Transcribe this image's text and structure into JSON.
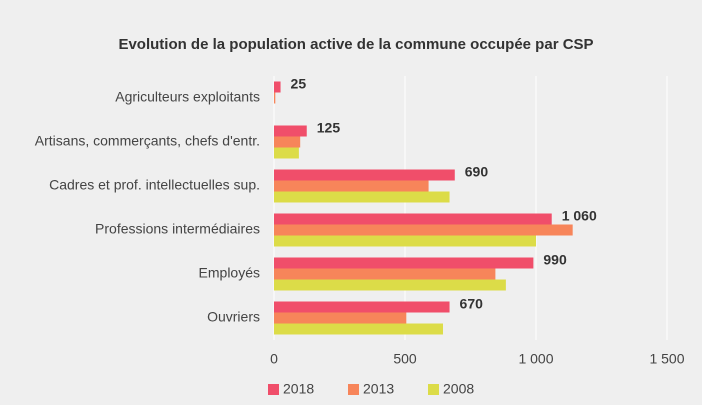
{
  "chart_data": {
    "type": "hbar",
    "title": "Evolution de la population active de la commune occupée par CSP",
    "categories": [
      "Agriculteurs exploitants",
      "Artisans, commerçants, chefs d'entr.",
      "Cadres et prof. intellectuelles sup.",
      "Professions intermédiaires",
      "Employés",
      "Ouvriers"
    ],
    "series": [
      {
        "name": "2018",
        "color": "#f04e6a",
        "values": [
          25,
          125,
          690,
          1060,
          990,
          670
        ],
        "value_labels": [
          "25",
          "125",
          "690",
          "1 060",
          "990",
          "670"
        ]
      },
      {
        "name": "2013",
        "color": "#f7855a",
        "values": [
          5,
          100,
          590,
          1140,
          845,
          505
        ]
      },
      {
        "name": "2008",
        "color": "#dcdc48",
        "values": [
          0,
          95,
          670,
          1000,
          885,
          645
        ]
      }
    ],
    "xlim": [
      0,
      1500
    ],
    "xticks": [
      0,
      500,
      {
        "value": 1000,
        "label": "1 000"
      },
      {
        "value": 1500,
        "label": "1 500"
      }
    ],
    "grid": true,
    "legend": "bottom"
  }
}
